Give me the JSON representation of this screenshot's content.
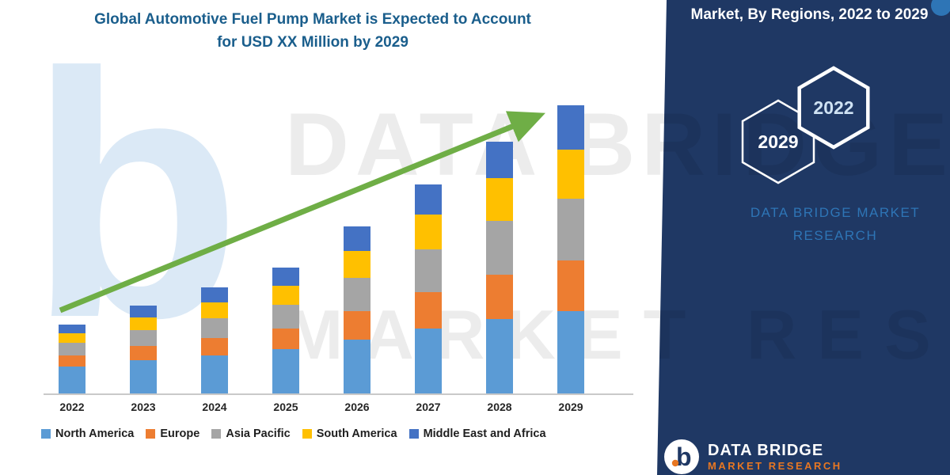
{
  "title": {
    "line1": "Global Automotive Fuel Pump Market is Expected to Account",
    "line2": "for USD XX Million by 2029"
  },
  "panel": {
    "heading": "Market, By Regions, 2022 to 2029",
    "hex_left": "2029",
    "hex_right": "2022",
    "brand_line1": "DATA BRIDGE MARKET",
    "brand_line2": "RESEARCH"
  },
  "footer": {
    "brand": "DATA BRIDGE",
    "sub": "MARKET RESEARCH"
  },
  "watermarks": {
    "line1": "DATA BRIDGE",
    "line2": "MARKET RESEARCH",
    "letter_b": "b"
  },
  "colors": {
    "north_america": "#5B9BD5",
    "europe": "#ED7D31",
    "asia_pacific": "#A5A5A5",
    "south_america": "#FFC000",
    "middle_east_africa": "#4472C4",
    "trend_arrow": "#6FAE46",
    "panel_bg": "#1F3864",
    "title_text": "#1A5E8C",
    "brand_blue": "#2E75B6",
    "logo_orange": "#E87722"
  },
  "chart_data": {
    "type": "bar",
    "stacked": true,
    "title": "Global Automotive Fuel Pump Market is Expected to Account for USD XX Million by 2029",
    "categories": [
      "2022",
      "2023",
      "2024",
      "2025",
      "2026",
      "2027",
      "2028",
      "2029"
    ],
    "series": [
      {
        "name": "North America",
        "color": "#5B9BD5",
        "values": [
          34,
          42,
          48,
          56,
          68,
          82,
          94,
          104
        ]
      },
      {
        "name": "Europe",
        "color": "#ED7D31",
        "values": [
          14,
          18,
          22,
          26,
          36,
          46,
          56,
          64
        ]
      },
      {
        "name": "Asia Pacific",
        "color": "#A5A5A5",
        "values": [
          16,
          20,
          25,
          30,
          42,
          54,
          68,
          78
        ]
      },
      {
        "name": "South America",
        "color": "#FFC000",
        "values": [
          12,
          16,
          20,
          24,
          34,
          44,
          54,
          62
        ]
      },
      {
        "name": "Middle East and Africa",
        "color": "#4472C4",
        "values": [
          11,
          15,
          19,
          23,
          31,
          38,
          46,
          56
        ]
      }
    ],
    "xlabel": "",
    "ylabel": "",
    "units": "relative index (values not labeled on chart, USD XX Million)",
    "legend_position": "bottom",
    "grid": false,
    "y_axis_shown": false,
    "trend_arrow": true
  }
}
